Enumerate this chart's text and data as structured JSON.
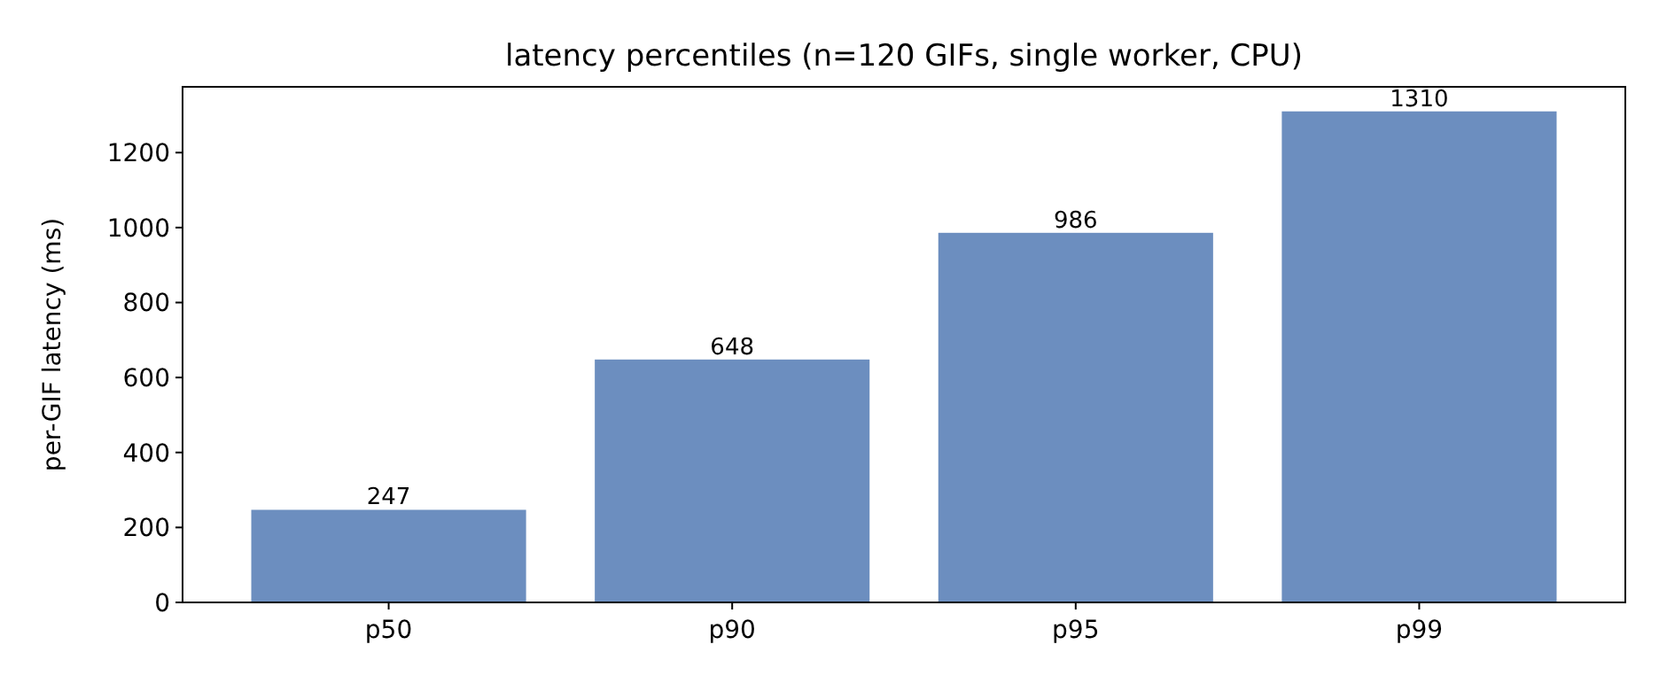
{
  "chart_data": {
    "type": "bar",
    "title": "latency percentiles  (n=120 GIFs, single worker, CPU)",
    "ylabel": "per-GIF latency (ms)",
    "categories": [
      "p50",
      "p90",
      "p95",
      "p99"
    ],
    "values": [
      247,
      648,
      986,
      1310
    ],
    "color": "#6c8ebf",
    "ylim": [
      0,
      1375.5
    ],
    "yticks": [
      0,
      200,
      400,
      600,
      800,
      1000,
      1200
    ],
    "data_labels": true,
    "grid": false
  }
}
